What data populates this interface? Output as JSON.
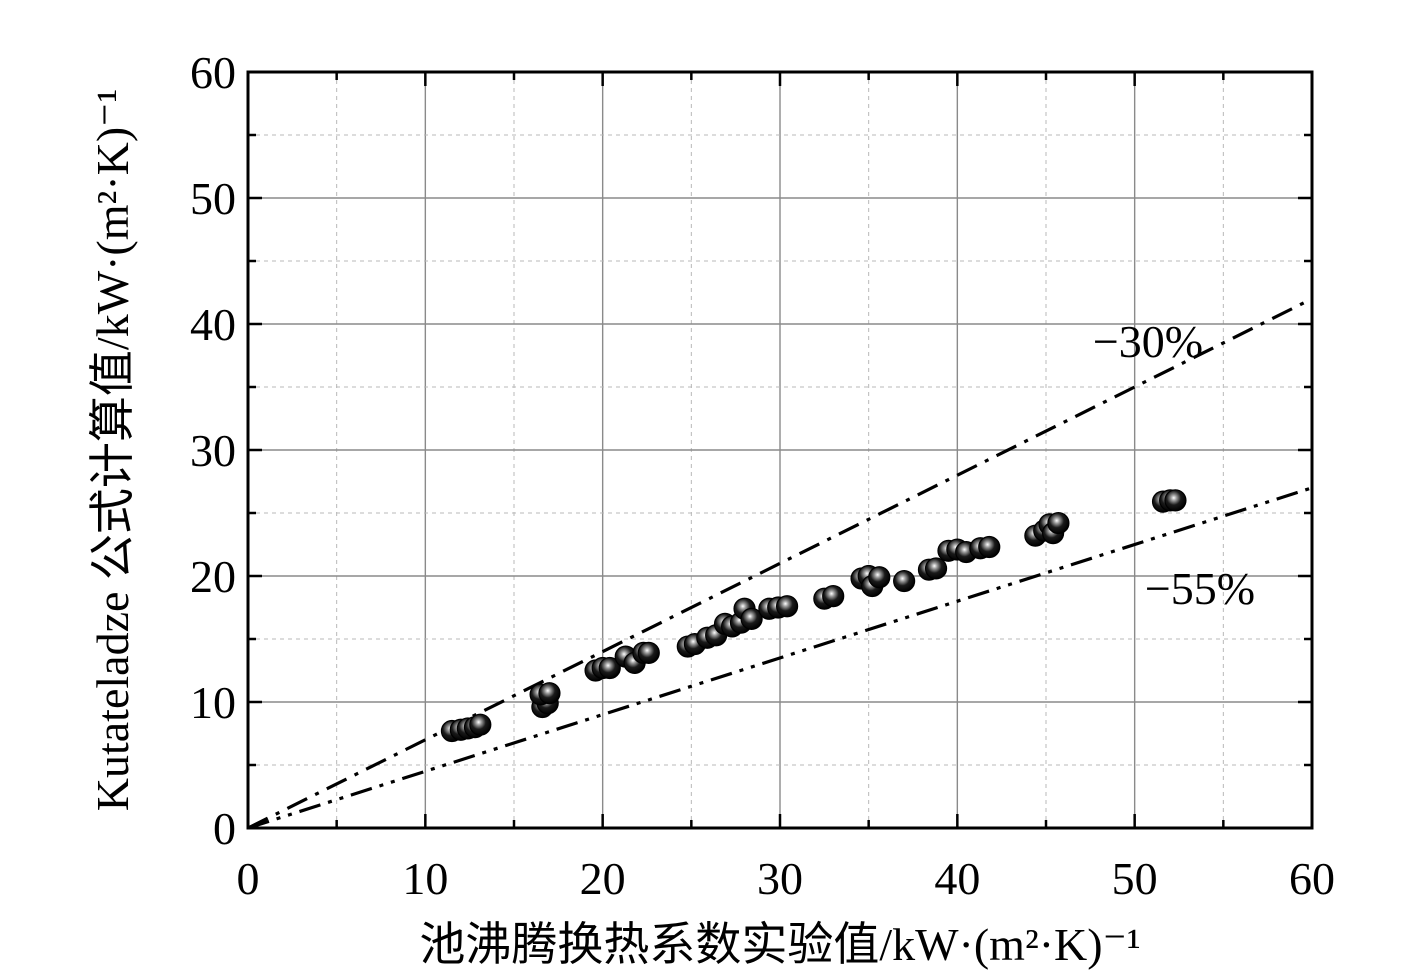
{
  "chart_data": {
    "type": "scatter",
    "title": "",
    "xlabel": "池沸腾换热系数实验值/kW·(m²·K)⁻¹",
    "ylabel": "Kutateladze 公式计算值/kW·(m²·K)⁻¹",
    "xlim": [
      0,
      60
    ],
    "ylim": [
      0,
      60
    ],
    "xticks": [
      "0",
      "10",
      "20",
      "30",
      "40",
      "50",
      "60"
    ],
    "yticks": [
      "0",
      "10",
      "20",
      "30",
      "40",
      "50",
      "60"
    ],
    "grid": true,
    "reference_lines": [
      {
        "name": "-30%",
        "label": "−30%",
        "slope": 0.7,
        "style": "dash-dot"
      },
      {
        "name": "-55%",
        "label": "−55%",
        "slope": 0.45,
        "style": "dash-dot-dot"
      }
    ],
    "series": [
      {
        "name": "Kutateladze",
        "points": [
          [
            11.5,
            7.7
          ],
          [
            12.0,
            7.8
          ],
          [
            12.4,
            7.9
          ],
          [
            12.8,
            8.0
          ],
          [
            13.1,
            8.2
          ],
          [
            16.6,
            9.6
          ],
          [
            16.9,
            9.9
          ],
          [
            16.5,
            10.6
          ],
          [
            17.0,
            10.7
          ],
          [
            19.6,
            12.5
          ],
          [
            20.0,
            12.7
          ],
          [
            20.4,
            12.7
          ],
          [
            21.3,
            13.6
          ],
          [
            21.8,
            13.1
          ],
          [
            22.3,
            13.9
          ],
          [
            22.6,
            13.9
          ],
          [
            24.8,
            14.4
          ],
          [
            25.2,
            14.6
          ],
          [
            25.9,
            15.1
          ],
          [
            26.4,
            15.3
          ],
          [
            26.9,
            16.2
          ],
          [
            27.3,
            16.0
          ],
          [
            27.8,
            16.3
          ],
          [
            28.0,
            17.4
          ],
          [
            28.4,
            16.6
          ],
          [
            29.4,
            17.4
          ],
          [
            29.9,
            17.5
          ],
          [
            30.4,
            17.6
          ],
          [
            32.5,
            18.2
          ],
          [
            33.0,
            18.4
          ],
          [
            34.6,
            19.8
          ],
          [
            35.0,
            20.0
          ],
          [
            35.2,
            19.2
          ],
          [
            35.6,
            19.9
          ],
          [
            37.0,
            19.6
          ],
          [
            38.4,
            20.5
          ],
          [
            38.8,
            20.6
          ],
          [
            39.5,
            22.0
          ],
          [
            40.0,
            22.1
          ],
          [
            40.5,
            21.9
          ],
          [
            41.3,
            22.2
          ],
          [
            41.8,
            22.3
          ],
          [
            44.4,
            23.2
          ],
          [
            44.9,
            23.6
          ],
          [
            45.2,
            24.1
          ],
          [
            45.4,
            23.4
          ],
          [
            45.7,
            24.2
          ],
          [
            51.6,
            25.9
          ],
          [
            52.0,
            26.0
          ],
          [
            52.3,
            26.0
          ]
        ]
      }
    ]
  }
}
